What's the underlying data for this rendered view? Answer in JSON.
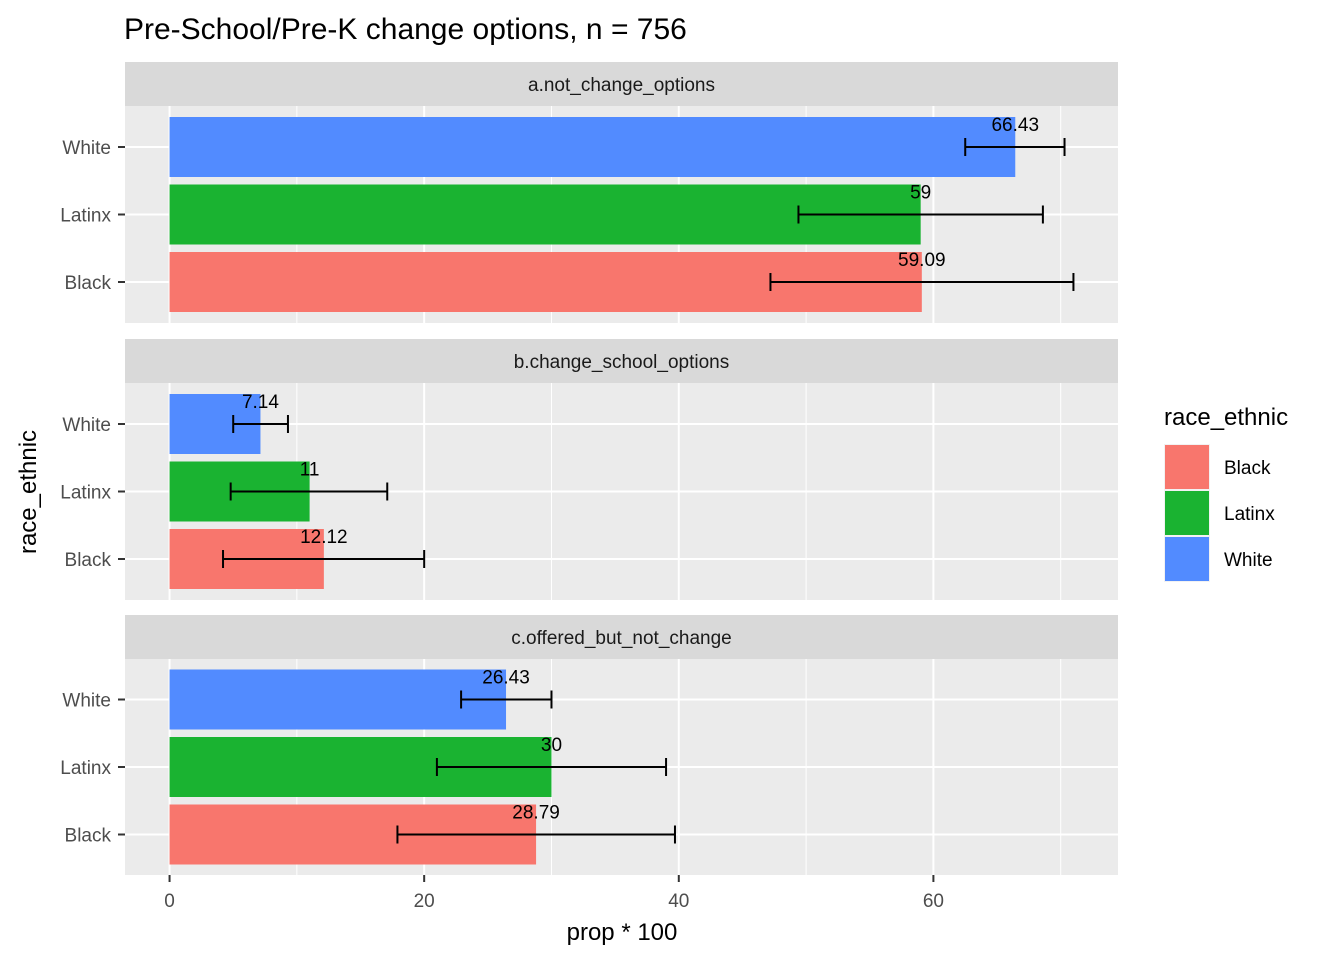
{
  "title": "Pre-School/Pre-K change options, n = 756",
  "chart_data": {
    "type": "bar",
    "orientation": "horizontal",
    "faceted": true,
    "xlabel": "prop * 100",
    "ylabel": "race_ethnic",
    "xlim": [
      -3.5,
      74.5
    ],
    "x_ticks": [
      0,
      20,
      40,
      60
    ],
    "categories": [
      "Black",
      "Latinx",
      "White"
    ],
    "grid": true,
    "legend": {
      "title": "race_ethnic",
      "position": "right",
      "entries": [
        {
          "name": "Black",
          "color": "#F8766D"
        },
        {
          "name": "Latinx",
          "color": "#1AB331"
        },
        {
          "name": "White",
          "color": "#528BFF"
        }
      ]
    },
    "panels": [
      {
        "name": "a.not_change_options",
        "bars": [
          {
            "category": "Black",
            "value": 59.09,
            "label": "59.09",
            "err_low": 47.2,
            "err_high": 71.0
          },
          {
            "category": "Latinx",
            "value": 59,
            "label": "59",
            "err_low": 49.4,
            "err_high": 68.6
          },
          {
            "category": "White",
            "value": 66.43,
            "label": "66.43",
            "err_low": 62.5,
            "err_high": 70.3
          }
        ]
      },
      {
        "name": "b.change_school_options",
        "bars": [
          {
            "category": "Black",
            "value": 12.12,
            "label": "12.12",
            "err_low": 4.2,
            "err_high": 20.0
          },
          {
            "category": "Latinx",
            "value": 11,
            "label": "11",
            "err_low": 4.8,
            "err_high": 17.1
          },
          {
            "category": "White",
            "value": 7.14,
            "label": "7.14",
            "err_low": 5.0,
            "err_high": 9.3
          }
        ]
      },
      {
        "name": "c.offered_but_not_change",
        "bars": [
          {
            "category": "Black",
            "value": 28.79,
            "label": "28.79",
            "err_low": 17.9,
            "err_high": 39.7
          },
          {
            "category": "Latinx",
            "value": 30,
            "label": "30",
            "err_low": 21.0,
            "err_high": 39.0
          },
          {
            "category": "White",
            "value": 26.43,
            "label": "26.43",
            "err_low": 22.9,
            "err_high": 30.0
          }
        ]
      }
    ]
  }
}
